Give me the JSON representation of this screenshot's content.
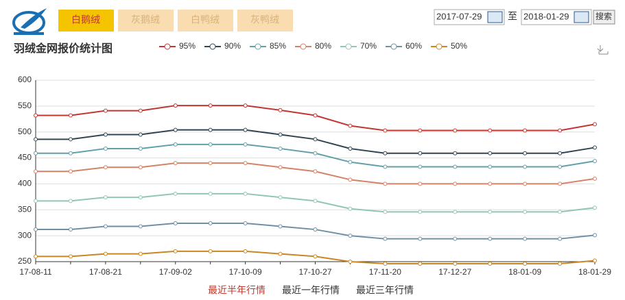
{
  "header": {
    "tabs": [
      "白鹅绒",
      "灰鹅绒",
      "白鸭绒",
      "灰鸭绒"
    ],
    "date_from": "2017-07-29",
    "date_sep": "至",
    "date_to": "2018-01-29",
    "search": "搜索"
  },
  "chart_data": {
    "type": "line",
    "title": "羽绒金网报价统计图",
    "categories": [
      "17-08-11",
      null,
      "17-08-21",
      null,
      "17-09-02",
      null,
      "17-10-09",
      null,
      "17-10-27",
      null,
      "17-11-20",
      null,
      "17-12-27",
      null,
      "18-01-09",
      null,
      "18-01-29"
    ],
    "series": [
      {
        "name": "95%",
        "color": "#c23531",
        "values": [
          532,
          532,
          541,
          541,
          551,
          551,
          551,
          542,
          532,
          512,
          503,
          503,
          503,
          503,
          503,
          503,
          515
        ]
      },
      {
        "name": "90%",
        "color": "#2f4554",
        "values": [
          486,
          486,
          495,
          495,
          504,
          504,
          504,
          495,
          486,
          468,
          459,
          459,
          459,
          459,
          459,
          459,
          470
        ]
      },
      {
        "name": "85%",
        "color": "#61a0a8",
        "values": [
          459,
          459,
          468,
          468,
          476,
          476,
          476,
          468,
          459,
          442,
          433,
          433,
          433,
          433,
          433,
          433,
          444
        ]
      },
      {
        "name": "80%",
        "color": "#d48265",
        "values": [
          424,
          424,
          432,
          432,
          440,
          440,
          440,
          432,
          424,
          408,
          400,
          400,
          400,
          400,
          400,
          400,
          410
        ]
      },
      {
        "name": "70%",
        "color": "#91c7ae",
        "values": [
          367,
          367,
          374,
          374,
          381,
          381,
          381,
          374,
          367,
          352,
          346,
          346,
          346,
          346,
          346,
          346,
          354
        ]
      },
      {
        "name": "60%",
        "color": "#6f8fa3",
        "values": [
          312,
          312,
          318,
          318,
          324,
          324,
          324,
          318,
          312,
          300,
          294,
          294,
          294,
          294,
          294,
          294,
          301
        ]
      },
      {
        "name": "50%",
        "color": "#ca8622",
        "values": [
          260,
          260,
          265,
          265,
          270,
          270,
          270,
          265,
          260,
          250,
          246,
          246,
          246,
          246,
          246,
          246,
          252
        ]
      }
    ],
    "ylim": [
      250,
      600
    ],
    "yticks": [
      250,
      300,
      350,
      400,
      450,
      500,
      550,
      600
    ],
    "grid": true
  },
  "footer": {
    "links": [
      "最近半年行情",
      "最近一年行情",
      "最近三年行情"
    ]
  }
}
